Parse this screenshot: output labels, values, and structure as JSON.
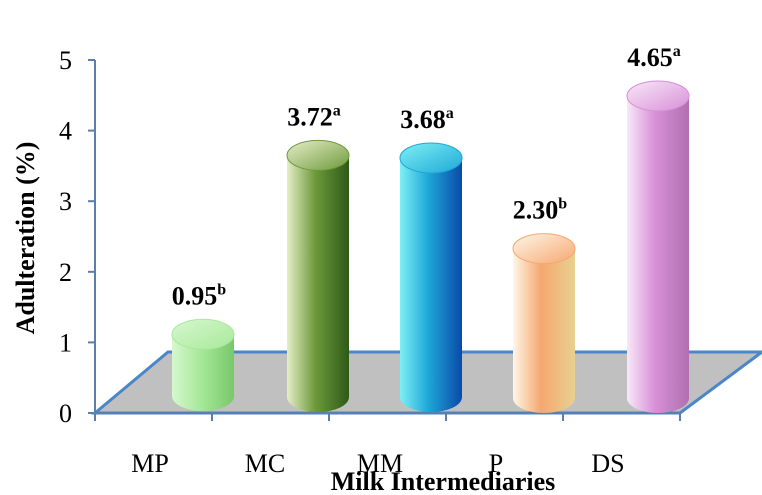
{
  "chart_data": {
    "type": "bar",
    "categories": [
      "MP",
      "MC",
      "MM",
      "P",
      "DS"
    ],
    "values": [
      0.95,
      3.72,
      3.68,
      2.3,
      4.65
    ],
    "value_labels": [
      "0.95",
      "3.72",
      "3.68",
      "2.30",
      "4.65"
    ],
    "superscripts": [
      "b",
      "a",
      "a",
      "b",
      "a"
    ],
    "xlabel": "Milk Intermediaries",
    "ylabel": "Adulteration (%)",
    "ylim": [
      0,
      5
    ],
    "yticks": [
      "0",
      "1",
      "2",
      "3",
      "4",
      "5"
    ],
    "grid": false,
    "legend": "none",
    "style": "3d-cylinder",
    "floor_color": "#c0c0c0",
    "floor_edge_color": "#4a86c8",
    "bar_colors": [
      [
        "#d6f7cf",
        "#a8e99a",
        "#78c86a"
      ],
      [
        "#e6eec8",
        "#6e9a3c",
        "#2d5a18"
      ],
      [
        "#7ef0f4",
        "#1ea8d8",
        "#0a4aa8"
      ],
      [
        "#fff6e8",
        "#f5a870",
        "#e8d090"
      ],
      [
        "#f8e8f8",
        "#d890d8",
        "#b070b0"
      ]
    ]
  }
}
